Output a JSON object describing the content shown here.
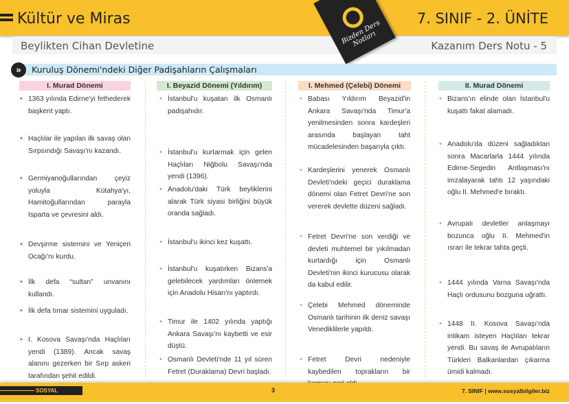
{
  "header": {
    "title": "Kültür ve Miras",
    "unit": "7. SINIF - 2. ÜNİTE",
    "subtitle": "Beylikten Cihan Devletine",
    "note": "Kazanım Ders Notu - 5",
    "badge": "Bizden Ders Notları"
  },
  "section": {
    "title": "Kuruluş Dönemi'ndeki Diğer Padişahların Çalışmaları",
    "icon": "double-chevron-right-icon"
  },
  "colors": {
    "accent": "#f8c12c",
    "col1": "#f9d3de",
    "col2": "#d5e8cf",
    "col3": "#fbdcc4",
    "col4": "#d3eae8"
  },
  "columns": [
    {
      "title": "I. Murad Dönemi",
      "items": [
        "1363 yılında Edirne'yi fethederek başkent yaptı.",
        "Haçlılar ile yapılan ilk savaş olan Sırpsındığı Savaşı'nı kazandı.",
        "Germiyanoğullarından çeyiz yoluyla Kütahya'yı, Hamitoğullarından parayla Isparta ve çevresini aldı.",
        "Devşirme sistemini ve Yeniçeri Ocağı'nı kurdu.",
        "İlk defa “sultan” unvanını kullandı.",
        "İlk defa tımar sistemini uyguladı.",
        "I. Kosova Savaşı'nda Haçlıları yendi (1389). Ancak savaş alanını gezerken bir Sırp askeri tarafından şehit edildi."
      ]
    },
    {
      "title": "I. Beyazid Dönemi (Yıldırım)",
      "items": [
        "İstanbul'u kuşatan ilk Osmanlı padişahıdır.",
        "İstanbul'u kurtarmak için gelen Haçlıları Niğbolu Savaşı'nda yendi (1396).",
        "Anadolu'daki Türk beyliklerini alarak Türk siyasi birliğini büyük oranda sağladı.",
        "İstanbul'u ikinci kez kuşattı.",
        "İstanbul'u kuşatırken Bizans'a gelebilecek yardımları önlemek için Anadolu Hisarı'nı yaptırdı.",
        "Timur ile 1402 yılında yaptığı Ankara Savaşı'nı kaybetti ve esir düştü.",
        "Osmanlı Devleti'nde 11 yıl süren Fetret (Duraklama) Devri başladı."
      ]
    },
    {
      "title": "I. Mehmed (Çelebi) Dönemi",
      "items": [
        "Babası Yıldırım Beyazid'in Ankara Savaşı'nda Timur'a yenilmesinden sonra kardeşleri arasında başlayan taht mücadelesinden başarıyla çıktı.",
        "Kardeşlerini yenerek Osmanlı Devleti'ndeki geçici duraklama dönemi olan Fetret Devri'ne son vererek devlette düzeni sağladı.",
        "Fetret Devri'ne son verdiği ve devleti muhtemel bir yıkılmadan kurtardığı için Osmanlı Devleti'nin ikinci kurucusu olarak da kabul edilir.",
        "Çelebi Mehmed döneminde Osmanlı tarihinin ilk deniz savaşı Venediklilerle yapıldı.",
        "Fetret Devri nedeniyle kaybedilen toprakların bir kısmını geri aldı."
      ]
    },
    {
      "title": "II. Murad Dönemi",
      "items": [
        "Bizans'ın elinde olan İstanbul'u kuşattı fakat alamadı.",
        "Anadolu'da düzeni sağladıktan sonra Macarlarla 1444 yılında Edirne-Segedin Antlaşması'nı imzalayarak tahtı 12 yaşındaki oğlu II. Mehmed'e bıraktı.",
        "Avrupalı devletler anlaşmayı bozunca oğlu II. Mehmed'in ısrarı ile tekrar tahta geçti.",
        "1444 yılında Varna Savaşı'nda Haçlı ordusunu bozguna uğrattı.",
        "1448 II. Kosova Savaşı'nda intikam isteyen Haçlıları tekrar yendi. Bu savaş ile Avrupalıların Türkleri Balkanlardan çıkarma ümidi kalmadı."
      ]
    }
  ],
  "footer": {
    "subject": "SOSYAL BİLGİLER",
    "page": "3",
    "right": "7. SINIF  |  www.sosyalbilgiler.biz"
  }
}
